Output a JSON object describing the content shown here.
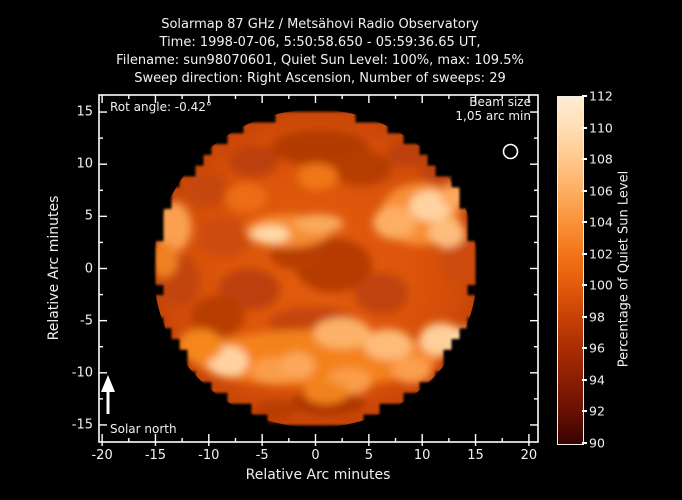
{
  "title": {
    "lines": [
      "Solarmap 87 GHz / Metsähovi Radio Observatory",
      "Time: 1998-07-06,  5:50:58.650 - 05:59:36.65 UT,",
      "Filename: sun98070601, Quiet Sun Level: 100%, max: 109.5%",
      "Sweep direction: Right Ascension, Number of sweeps: 29"
    ]
  },
  "axes": {
    "x_label": "Relative Arc minutes",
    "y_label": "Relative Arc minutes",
    "x_ticks": [
      -20,
      -15,
      -10,
      -5,
      0,
      5,
      10,
      15,
      20
    ],
    "y_ticks": [
      -15,
      -10,
      -5,
      0,
      5,
      10,
      15
    ],
    "minor_step": 2.5
  },
  "annotations": {
    "rot_angle": "Rot angle: -0.42°",
    "beam_size_line1": "Beam size",
    "beam_size_line2": "1,05 arc min",
    "solar_north": "Solar north"
  },
  "colorbar": {
    "label": "Percentage of Quiet Sun Level",
    "ticks": [
      112,
      110,
      108,
      106,
      104,
      102,
      100,
      98,
      96,
      94,
      92,
      90
    ],
    "stops": [
      {
        "v": 112,
        "c": "#FFECD4"
      },
      {
        "v": 110,
        "c": "#FFDDB4"
      },
      {
        "v": 108,
        "c": "#FFC78B"
      },
      {
        "v": 106,
        "c": "#FDAD60"
      },
      {
        "v": 104,
        "c": "#FA9138"
      },
      {
        "v": 102,
        "c": "#F37317"
      },
      {
        "v": 100,
        "c": "#E25A0B"
      },
      {
        "v": 98,
        "c": "#C64106"
      },
      {
        "v": 96,
        "c": "#A82D03"
      },
      {
        "v": 94,
        "c": "#8A1D04"
      },
      {
        "v": 92,
        "c": "#690F02"
      },
      {
        "v": 90,
        "c": "#380300"
      }
    ]
  },
  "chart_data": {
    "type": "heatmap",
    "title": "Solarmap 87 GHz / Metsähovi Radio Observatory",
    "time_ut": "1998-07-06, 5:50:58.650 - 05:59:36.65 UT",
    "filename": "sun98070601",
    "quiet_sun_level_pct": 100,
    "max_pct": 109.5,
    "sweep_direction": "Right Ascension",
    "number_of_sweeps": 29,
    "rot_angle_deg": -0.42,
    "beam_size_arcmin": "1,05",
    "xlabel": "Relative Arc minutes",
    "ylabel": "Relative Arc minutes",
    "xlim": [
      -20.2,
      20.9
    ],
    "ylim": [
      -16.6,
      16.6
    ],
    "value_scale_label": "Percentage of Quiet Sun Level",
    "value_range": [
      90,
      112
    ],
    "background_value": 0,
    "sun_disk": {
      "center_arcmin": [
        0.35,
        0.0
      ],
      "radius_arcmin": 15.0,
      "base_pct": 100.5
    },
    "beam_marker_arcmin": [
      18.3,
      11.2
    ],
    "features_dark": [
      {
        "x": 0.4,
        "y": 11.6,
        "rx": 4.6,
        "ry": 1.7,
        "c": "#B23A06"
      },
      {
        "x": -5.8,
        "y": 10.3,
        "rx": 2.3,
        "ry": 1.5,
        "c": "#BC4007"
      },
      {
        "x": 4.3,
        "y": 9.6,
        "rx": 2.9,
        "ry": 1.7,
        "c": "#B63C06"
      },
      {
        "x": 8.6,
        "y": 11.0,
        "rx": 1.9,
        "ry": 1.2,
        "c": "#BC4007"
      },
      {
        "x": -10.2,
        "y": 7.6,
        "rx": 2.1,
        "ry": 1.7,
        "c": "#C64709"
      },
      {
        "x": -8.5,
        "y": 3.0,
        "rx": 2.5,
        "ry": 2.0,
        "c": "#CC4C09"
      },
      {
        "x": 1.7,
        "y": 0.3,
        "rx": 3.6,
        "ry": 2.6,
        "c": "#B53A06"
      },
      {
        "x": -1.8,
        "y": 1.4,
        "rx": 2.5,
        "ry": 1.5,
        "c": "#B83D06"
      },
      {
        "x": -6.2,
        "y": -2.0,
        "rx": 2.9,
        "ry": 2.0,
        "c": "#BC4007"
      },
      {
        "x": 6.2,
        "y": -2.4,
        "rx": 2.5,
        "ry": 2.0,
        "c": "#C04208"
      },
      {
        "x": -9.2,
        "y": -4.6,
        "rx": 2.5,
        "ry": 2.0,
        "c": "#B83D06"
      },
      {
        "x": -12.8,
        "y": -1.2,
        "rx": 1.9,
        "ry": 2.5,
        "c": "#C24408"
      },
      {
        "x": -0.2,
        "y": -5.2,
        "rx": 4.2,
        "ry": 1.5,
        "c": "#C4450A"
      },
      {
        "x": 1.2,
        "y": -12.9,
        "rx": 3.5,
        "ry": 1.2,
        "c": "#AE3605"
      },
      {
        "x": -3.8,
        "y": -13.6,
        "rx": 2.0,
        "ry": 1.0,
        "c": "#B83D06"
      },
      {
        "x": 13.6,
        "y": 0.8,
        "rx": 1.9,
        "ry": 2.3,
        "c": "#CC4C09"
      },
      {
        "x": 11.5,
        "y": 9.4,
        "rx": 1.7,
        "ry": 1.3,
        "c": "#C04208"
      }
    ],
    "features_bright": [
      {
        "x": -2.6,
        "y": 3.6,
        "rx": 4.0,
        "ry": 1.6,
        "c": "#F68C33"
      },
      {
        "x": 0.3,
        "y": 4.3,
        "rx": 2.3,
        "ry": 0.9,
        "c": "#FAA95C"
      },
      {
        "x": -4.2,
        "y": 3.3,
        "rx": 1.8,
        "ry": 0.85,
        "c": "#FFD9A6"
      },
      {
        "x": 9.8,
        "y": 5.2,
        "rx": 3.7,
        "ry": 3.0,
        "c": "#F78E36"
      },
      {
        "x": 7.4,
        "y": 4.4,
        "rx": 2.0,
        "ry": 1.6,
        "c": "#FCAE63"
      },
      {
        "x": 10.8,
        "y": 6.0,
        "rx": 2.0,
        "ry": 1.5,
        "c": "#FFD3A0"
      },
      {
        "x": 12.3,
        "y": 3.4,
        "rx": 1.7,
        "ry": 1.4,
        "c": "#FDBD7D"
      },
      {
        "x": 13.2,
        "y": 7.0,
        "rx": 1.5,
        "ry": 1.2,
        "c": "#FCA75C"
      },
      {
        "x": -13.3,
        "y": 4.0,
        "rx": 1.7,
        "ry": 2.4,
        "c": "#FAA050"
      },
      {
        "x": -14.2,
        "y": 0.8,
        "rx": 1.3,
        "ry": 1.7,
        "c": "#F08024"
      },
      {
        "x": 0.2,
        "y": 8.8,
        "rx": 1.9,
        "ry": 1.3,
        "c": "#EF7716"
      },
      {
        "x": -6.5,
        "y": 6.8,
        "rx": 2.0,
        "ry": 1.4,
        "c": "#EC6D12"
      },
      {
        "x": 0.0,
        "y": -8.6,
        "rx": 11.5,
        "ry": 2.7,
        "c": "#F4821F"
      },
      {
        "x": -8.2,
        "y": -8.9,
        "rx": 1.9,
        "ry": 1.5,
        "c": "#FFD3A0"
      },
      {
        "x": -4.0,
        "y": -9.8,
        "rx": 2.0,
        "ry": 1.3,
        "c": "#FA9C4A"
      },
      {
        "x": -1.7,
        "y": -9.3,
        "rx": 1.6,
        "ry": 1.3,
        "c": "#FCA75C"
      },
      {
        "x": 2.5,
        "y": -6.2,
        "rx": 2.7,
        "ry": 1.5,
        "c": "#FCB267"
      },
      {
        "x": 6.8,
        "y": -7.3,
        "rx": 2.3,
        "ry": 1.5,
        "c": "#FDBB78"
      },
      {
        "x": 11.8,
        "y": -6.8,
        "rx": 2.1,
        "ry": 1.6,
        "c": "#FFCE99"
      },
      {
        "x": 13.9,
        "y": -6.9,
        "rx": 1.3,
        "ry": 1.2,
        "c": "#FFD9A6"
      },
      {
        "x": 3.2,
        "y": -10.8,
        "rx": 2.1,
        "ry": 1.3,
        "c": "#FA9C4A"
      },
      {
        "x": 9.0,
        "y": -9.7,
        "rx": 1.9,
        "ry": 1.3,
        "c": "#FB9E4E"
      },
      {
        "x": -10.8,
        "y": -7.4,
        "rx": 2.1,
        "ry": 1.6,
        "c": "#F5871F"
      },
      {
        "x": 1.0,
        "y": -11.9,
        "rx": 2.1,
        "ry": 1.1,
        "c": "#F2831F"
      }
    ],
    "colors": {
      "background": "#000000",
      "frame": "#FFFFFF",
      "sun_base_center": "#E25D0E",
      "sun_base_edge": "#C64508"
    }
  }
}
